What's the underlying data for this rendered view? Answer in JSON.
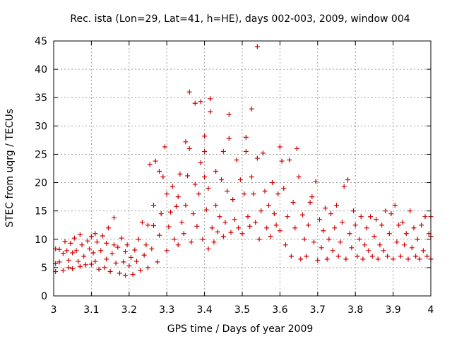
{
  "chart_data": {
    "type": "scatter",
    "title": "Rec. ista (Lon=29, Lat=41, h=HE), days 002-003, 2009, window 004",
    "xlabel": "GPS time / Days of year 2009",
    "ylabel": "STEC from uqrg / TECUs",
    "xlim": [
      3.0,
      4.0
    ],
    "ylim": [
      0,
      45
    ],
    "xticks": [
      "3",
      "3.1",
      "3.2",
      "3.3",
      "3.4",
      "3.5",
      "3.6",
      "3.7",
      "3.8",
      "3.9",
      "4"
    ],
    "yticks": [
      "0",
      "5",
      "10",
      "15",
      "20",
      "25",
      "30",
      "35",
      "40",
      "45"
    ],
    "grid": true,
    "marker": "+",
    "color": "#cc0000",
    "series": [
      {
        "points": [
          [
            3.005,
            8.3
          ],
          [
            3.005,
            5.7
          ],
          [
            3.005,
            4.3
          ],
          [
            3.015,
            8.2
          ],
          [
            3.015,
            6.0
          ],
          [
            3.025,
            7.5
          ],
          [
            3.025,
            4.5
          ],
          [
            3.03,
            9.6
          ],
          [
            3.035,
            8.0
          ],
          [
            3.04,
            6.3
          ],
          [
            3.04,
            5.0
          ],
          [
            3.045,
            9.3
          ],
          [
            3.05,
            7.6
          ],
          [
            3.05,
            4.8
          ],
          [
            3.055,
            10.2
          ],
          [
            3.06,
            8.0
          ],
          [
            3.065,
            6.1
          ],
          [
            3.07,
            5.2
          ],
          [
            3.07,
            10.8
          ],
          [
            3.075,
            9.0
          ],
          [
            3.08,
            7.0
          ],
          [
            3.085,
            5.5
          ],
          [
            3.09,
            9.7
          ],
          [
            3.095,
            8.3
          ],
          [
            3.1,
            5.6
          ],
          [
            3.1,
            10.5
          ],
          [
            3.105,
            7.6
          ],
          [
            3.11,
            6.1
          ],
          [
            3.11,
            11.0
          ],
          [
            3.115,
            9.5
          ],
          [
            3.12,
            4.7
          ],
          [
            3.125,
            8.0
          ],
          [
            3.13,
            10.6
          ],
          [
            3.135,
            5.0
          ],
          [
            3.14,
            6.5
          ],
          [
            3.14,
            9.3
          ],
          [
            3.145,
            12.0
          ],
          [
            3.15,
            4.3
          ],
          [
            3.155,
            7.5
          ],
          [
            3.16,
            9.0
          ],
          [
            3.16,
            13.8
          ],
          [
            3.165,
            5.8
          ],
          [
            3.17,
            8.6
          ],
          [
            3.175,
            4.0
          ],
          [
            3.18,
            10.2
          ],
          [
            3.185,
            6.0
          ],
          [
            3.19,
            7.8
          ],
          [
            3.19,
            3.6
          ],
          [
            3.195,
            9.0
          ],
          [
            3.2,
            5.3
          ],
          [
            3.205,
            6.8
          ],
          [
            3.21,
            3.8
          ],
          [
            3.215,
            8.1
          ],
          [
            3.22,
            6.1
          ],
          [
            3.225,
            10.0
          ],
          [
            3.23,
            4.5
          ],
          [
            3.235,
            13.0
          ],
          [
            3.24,
            7.2
          ],
          [
            3.245,
            9.0
          ],
          [
            3.25,
            5.0
          ],
          [
            3.25,
            12.5
          ],
          [
            3.255,
            23.2
          ],
          [
            3.26,
            8.3
          ],
          [
            3.265,
            16.0
          ],
          [
            3.265,
            12.4
          ],
          [
            3.27,
            23.8
          ],
          [
            3.275,
            6.0
          ],
          [
            3.28,
            10.7
          ],
          [
            3.28,
            22.0
          ],
          [
            3.285,
            14.5
          ],
          [
            3.29,
            21.0
          ],
          [
            3.295,
            26.3
          ],
          [
            3.3,
            8.0
          ],
          [
            3.3,
            18.0
          ],
          [
            3.305,
            12.2
          ],
          [
            3.31,
            14.8
          ],
          [
            3.315,
            19.3
          ],
          [
            3.32,
            10.0
          ],
          [
            3.325,
            15.8
          ],
          [
            3.33,
            9.0
          ],
          [
            3.33,
            17.5
          ],
          [
            3.335,
            21.5
          ],
          [
            3.34,
            13.0
          ],
          [
            3.345,
            11.0
          ],
          [
            3.35,
            16.0
          ],
          [
            3.35,
            27.2
          ],
          [
            3.355,
            21.2
          ],
          [
            3.36,
            36.0
          ],
          [
            3.36,
            26.0
          ],
          [
            3.365,
            9.5
          ],
          [
            3.37,
            14.5
          ],
          [
            3.375,
            19.7
          ],
          [
            3.375,
            34.0
          ],
          [
            3.38,
            12.3
          ],
          [
            3.385,
            18.0
          ],
          [
            3.39,
            34.3
          ],
          [
            3.39,
            23.5
          ],
          [
            3.395,
            10.0
          ],
          [
            3.4,
            28.2
          ],
          [
            3.4,
            25.5
          ],
          [
            3.4,
            21.0
          ],
          [
            3.405,
            15.2
          ],
          [
            3.41,
            8.3
          ],
          [
            3.41,
            19.0
          ],
          [
            3.415,
            34.8
          ],
          [
            3.415,
            32.5
          ],
          [
            3.42,
            12.0
          ],
          [
            3.425,
            9.5
          ],
          [
            3.43,
            16.0
          ],
          [
            3.43,
            22.0
          ],
          [
            3.435,
            11.3
          ],
          [
            3.44,
            14.0
          ],
          [
            3.445,
            20.5
          ],
          [
            3.45,
            10.5
          ],
          [
            3.45,
            25.5
          ],
          [
            3.455,
            13.0
          ],
          [
            3.46,
            18.5
          ],
          [
            3.465,
            27.8
          ],
          [
            3.465,
            32.0
          ],
          [
            3.47,
            11.2
          ],
          [
            3.475,
            17.0
          ],
          [
            3.48,
            13.5
          ],
          [
            3.485,
            24.0
          ],
          [
            3.49,
            12.0
          ],
          [
            3.495,
            20.5
          ],
          [
            3.5,
            11.0
          ],
          [
            3.505,
            18.0
          ],
          [
            3.51,
            28.0
          ],
          [
            3.51,
            25.5
          ],
          [
            3.515,
            14.0
          ],
          [
            3.52,
            12.3
          ],
          [
            3.525,
            33.0
          ],
          [
            3.525,
            21.0
          ],
          [
            3.53,
            18.0
          ],
          [
            3.535,
            13.0
          ],
          [
            3.54,
            44.0
          ],
          [
            3.54,
            24.3
          ],
          [
            3.545,
            10.0
          ],
          [
            3.55,
            15.0
          ],
          [
            3.555,
            25.2
          ],
          [
            3.56,
            18.5
          ],
          [
            3.565,
            12.0
          ],
          [
            3.57,
            16.0
          ],
          [
            3.575,
            10.5
          ],
          [
            3.58,
            20.0
          ],
          [
            3.585,
            14.5
          ],
          [
            3.59,
            12.5
          ],
          [
            3.595,
            18.0
          ],
          [
            3.6,
            26.3
          ],
          [
            3.6,
            11.5
          ],
          [
            3.605,
            23.8
          ],
          [
            3.61,
            19.0
          ],
          [
            3.615,
            9.0
          ],
          [
            3.62,
            14.0
          ],
          [
            3.625,
            24.0
          ],
          [
            3.63,
            7.0
          ],
          [
            3.635,
            16.5
          ],
          [
            3.64,
            12.0
          ],
          [
            3.645,
            26.0
          ],
          [
            3.65,
            21.0
          ],
          [
            3.655,
            6.5
          ],
          [
            3.66,
            14.3
          ],
          [
            3.665,
            10.0
          ],
          [
            3.67,
            7.0
          ],
          [
            3.675,
            12.5
          ],
          [
            3.68,
            16.5
          ],
          [
            3.685,
            17.5
          ],
          [
            3.69,
            9.5
          ],
          [
            3.695,
            20.2
          ],
          [
            3.7,
            6.3
          ],
          [
            3.705,
            13.5
          ],
          [
            3.71,
            8.5
          ],
          [
            3.715,
            11.5
          ],
          [
            3.72,
            15.5
          ],
          [
            3.725,
            6.5
          ],
          [
            3.73,
            10.0
          ],
          [
            3.735,
            14.5
          ],
          [
            3.74,
            8.0
          ],
          [
            3.745,
            12.0
          ],
          [
            3.75,
            16.0
          ],
          [
            3.755,
            7.0
          ],
          [
            3.76,
            9.5
          ],
          [
            3.765,
            13.0
          ],
          [
            3.77,
            19.3
          ],
          [
            3.775,
            6.5
          ],
          [
            3.78,
            20.5
          ],
          [
            3.785,
            11.0
          ],
          [
            3.79,
            8.5
          ],
          [
            3.795,
            15.0
          ],
          [
            3.8,
            12.5
          ],
          [
            3.805,
            7.0
          ],
          [
            3.81,
            10.0
          ],
          [
            3.815,
            14.0
          ],
          [
            3.82,
            6.5
          ],
          [
            3.825,
            9.0
          ],
          [
            3.83,
            12.0
          ],
          [
            3.835,
            8.0
          ],
          [
            3.84,
            14.0
          ],
          [
            3.845,
            7.0
          ],
          [
            3.85,
            10.5
          ],
          [
            3.855,
            13.5
          ],
          [
            3.86,
            6.5
          ],
          [
            3.865,
            9.0
          ],
          [
            3.87,
            12.5
          ],
          [
            3.875,
            8.0
          ],
          [
            3.88,
            15.0
          ],
          [
            3.885,
            7.0
          ],
          [
            3.89,
            11.0
          ],
          [
            3.895,
            14.5
          ],
          [
            3.9,
            6.5
          ],
          [
            3.905,
            16.0
          ],
          [
            3.91,
            9.5
          ],
          [
            3.915,
            12.5
          ],
          [
            3.92,
            7.0
          ],
          [
            3.925,
            13.0
          ],
          [
            3.93,
            9.0
          ],
          [
            3.935,
            11.0
          ],
          [
            3.94,
            6.5
          ],
          [
            3.945,
            15.0
          ],
          [
            3.95,
            8.5
          ],
          [
            3.955,
            12.0
          ],
          [
            3.96,
            7.0
          ],
          [
            3.965,
            10.0
          ],
          [
            3.97,
            6.5
          ],
          [
            3.975,
            12.5
          ],
          [
            3.98,
            8.0
          ],
          [
            3.985,
            14.0
          ],
          [
            3.99,
            7.0
          ],
          [
            3.995,
            11.0
          ],
          [
            4.0,
            6.5
          ],
          [
            4.0,
            10.5
          ],
          [
            4.0,
            14.0
          ]
        ]
      }
    ]
  }
}
